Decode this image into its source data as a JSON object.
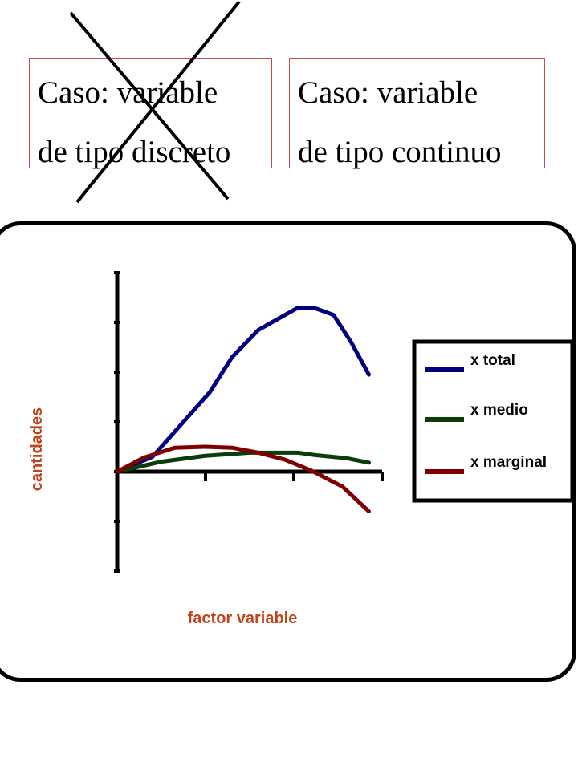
{
  "cases": {
    "discrete": {
      "line1": "Caso: variable",
      "line2": "de tipo discreto",
      "crossed_out": true
    },
    "continuous": {
      "line1": "Caso: variable",
      "line2": "de tipo continuo"
    }
  },
  "colors": {
    "box_border": "#c0504d",
    "axis_label": "#c0441a",
    "x_total": "#00007f",
    "x_medio": "#0b3d0b",
    "x_marginal": "#7f0000"
  },
  "chart_data": {
    "type": "line",
    "xlabel": "factor variable",
    "ylabel": "cantidades",
    "xlim": [
      0,
      3
    ],
    "ylim": [
      -2,
      4
    ],
    "x_tick_count": 3,
    "y_tick_count": 6,
    "grid": false,
    "legend_position": "right",
    "series": [
      {
        "name": "x total",
        "color": "#00007f",
        "points": [
          [
            0,
            0
          ],
          [
            0.4,
            0.3
          ],
          [
            0.75,
            1
          ],
          [
            1.05,
            1.6
          ],
          [
            1.3,
            2.3
          ],
          [
            1.6,
            2.85
          ],
          [
            1.85,
            3.1
          ],
          [
            2.05,
            3.3
          ],
          [
            2.25,
            3.28
          ],
          [
            2.45,
            3.15
          ],
          [
            2.65,
            2.6
          ],
          [
            2.85,
            1.95
          ]
        ]
      },
      {
        "name": "x medio",
        "color": "#0b3d0b",
        "points": [
          [
            0,
            0
          ],
          [
            0.5,
            0.2
          ],
          [
            1.0,
            0.32
          ],
          [
            1.5,
            0.38
          ],
          [
            2.05,
            0.38
          ],
          [
            2.25,
            0.33
          ],
          [
            2.6,
            0.27
          ],
          [
            2.85,
            0.18
          ]
        ]
      },
      {
        "name": "x marginal",
        "color": "#7f0000",
        "points": [
          [
            0,
            0
          ],
          [
            0.3,
            0.28
          ],
          [
            0.65,
            0.48
          ],
          [
            1.0,
            0.5
          ],
          [
            1.3,
            0.48
          ],
          [
            1.6,
            0.38
          ],
          [
            1.9,
            0.24
          ],
          [
            2.2,
            0.02
          ],
          [
            2.55,
            -0.3
          ],
          [
            2.85,
            -0.8
          ]
        ]
      }
    ]
  }
}
